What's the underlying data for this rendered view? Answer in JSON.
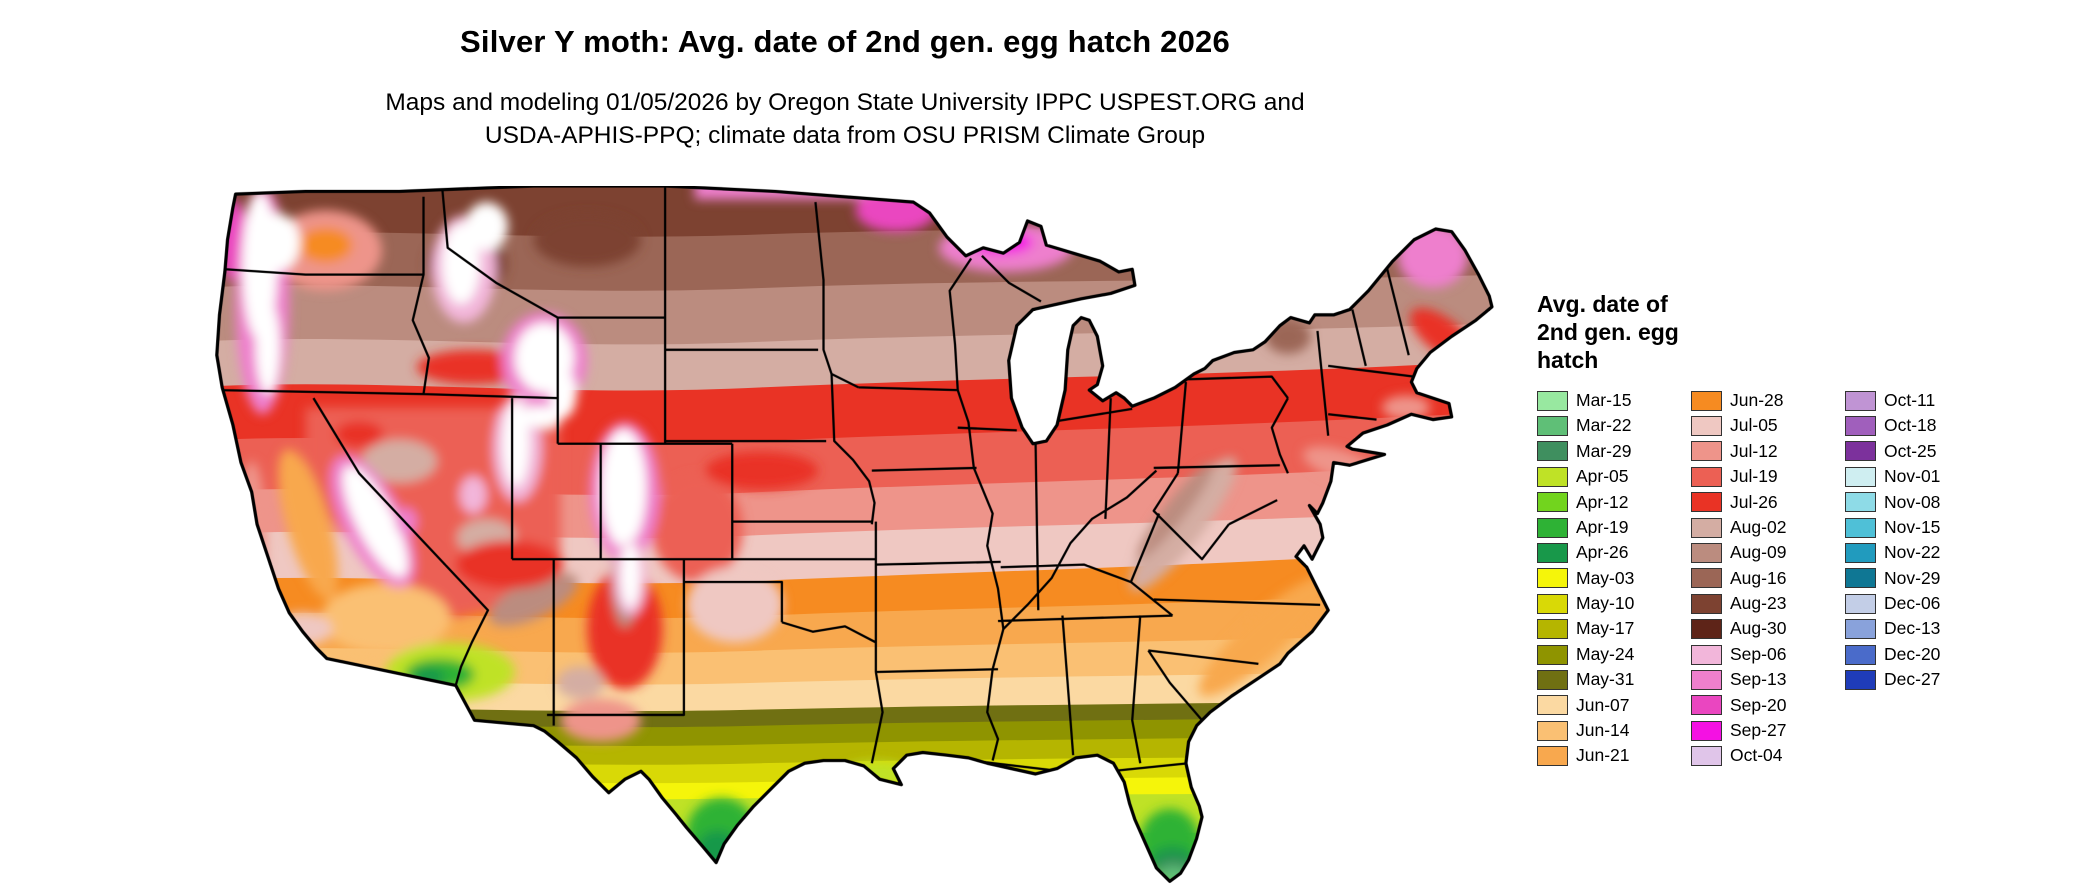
{
  "header": {
    "title": "Silver Y moth: Avg. date of 2nd gen. egg hatch 2026",
    "subtitle_line1": "Maps and modeling 01/05/2026 by Oregon State University IPPC USPEST.ORG and",
    "subtitle_line2": "USDA-APHIS-PPQ; climate data from OSU PRISM Climate Group"
  },
  "legend": {
    "title_lines": [
      "Avg. date of",
      "2nd gen. egg",
      "hatch"
    ],
    "columns": [
      {
        "items": [
          {
            "label": "Mar-15",
            "color": "#98e8a0"
          },
          {
            "label": "Mar-22",
            "color": "#5fbf77"
          },
          {
            "label": "Mar-29",
            "color": "#3f8f5f"
          },
          {
            "label": "Apr-05",
            "color": "#bfe226"
          },
          {
            "label": "Apr-12",
            "color": "#72d41e"
          },
          {
            "label": "Apr-19",
            "color": "#2eb235"
          },
          {
            "label": "Apr-26",
            "color": "#18984a"
          },
          {
            "label": "May-03",
            "color": "#f5f50a"
          },
          {
            "label": "May-10",
            "color": "#d9d906"
          },
          {
            "label": "May-17",
            "color": "#b5b500"
          },
          {
            "label": "May-24",
            "color": "#8f9400"
          },
          {
            "label": "May-31",
            "color": "#707012"
          },
          {
            "label": "Jun-07",
            "color": "#fbd9a2"
          },
          {
            "label": "Jun-14",
            "color": "#fac073"
          },
          {
            "label": "Jun-21",
            "color": "#f8a84e"
          }
        ]
      },
      {
        "items": [
          {
            "label": "Jun-28",
            "color": "#f68b21"
          },
          {
            "label": "Jul-05",
            "color": "#efc8c2"
          },
          {
            "label": "Jul-12",
            "color": "#ee948a"
          },
          {
            "label": "Jul-19",
            "color": "#ec6054"
          },
          {
            "label": "Jul-26",
            "color": "#e93325"
          },
          {
            "label": "Aug-02",
            "color": "#d4ada3"
          },
          {
            "label": "Aug-09",
            "color": "#bb8c7f"
          },
          {
            "label": "Aug-16",
            "color": "#9b6656"
          },
          {
            "label": "Aug-23",
            "color": "#7d4231"
          },
          {
            "label": "Aug-30",
            "color": "#5e2418"
          },
          {
            "label": "Sep-06",
            "color": "#f2b6da"
          },
          {
            "label": "Sep-13",
            "color": "#ee7fcd"
          },
          {
            "label": "Sep-20",
            "color": "#ea46c0"
          },
          {
            "label": "Sep-27",
            "color": "#f411e3"
          },
          {
            "label": "Oct-04",
            "color": "#e0c5e9"
          }
        ]
      },
      {
        "items": [
          {
            "label": "Oct-11",
            "color": "#c094d4"
          },
          {
            "label": "Oct-18",
            "color": "#a05fbc"
          },
          {
            "label": "Oct-25",
            "color": "#7c319c"
          },
          {
            "label": "Nov-01",
            "color": "#cfeef1"
          },
          {
            "label": "Nov-08",
            "color": "#8edbe7"
          },
          {
            "label": "Nov-15",
            "color": "#4fc0d7"
          },
          {
            "label": "Nov-22",
            "color": "#219bbe"
          },
          {
            "label": "Nov-29",
            "color": "#0f7794"
          },
          {
            "label": "Dec-06",
            "color": "#c3cee7"
          },
          {
            "label": "Dec-13",
            "color": "#89a2db"
          },
          {
            "label": "Dec-20",
            "color": "#4a6bca"
          },
          {
            "label": "Dec-27",
            "color": "#1f3cb9"
          }
        ]
      }
    ]
  }
}
